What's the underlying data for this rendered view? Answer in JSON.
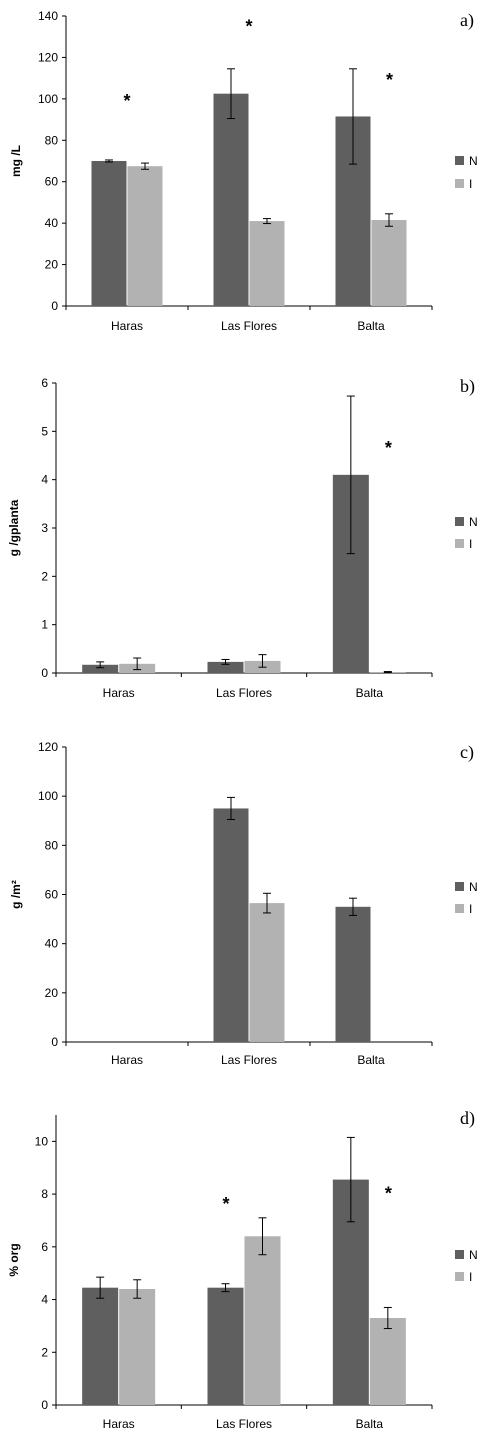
{
  "colors": {
    "N": "#5f5f5f",
    "I": "#b2b2b2",
    "axis": "#000000",
    "errbar": "#000000"
  },
  "chart_data": [
    {
      "type": "bar",
      "panel_label": "a)",
      "ylabel": "mg /L",
      "categories": [
        "Haras",
        "Las Flores",
        "Balta"
      ],
      "series": [
        {
          "name": "N",
          "values": [
            70,
            102.5,
            91.5
          ],
          "errors": [
            0.5,
            12,
            23
          ]
        },
        {
          "name": "I",
          "values": [
            67.5,
            41,
            41.5
          ],
          "errors": [
            1.5,
            1.2,
            3
          ]
        }
      ],
      "ylim": [
        0,
        140
      ],
      "yticks": [
        0,
        20,
        40,
        60,
        80,
        100,
        120,
        140
      ],
      "annotations": [
        {
          "text": "*",
          "category": "Haras",
          "y": 100
        },
        {
          "text": "*",
          "category": "Las Flores",
          "y": 136
        },
        {
          "text": "*",
          "category": "Balta",
          "y": 110
        }
      ],
      "grid": false,
      "legend": "right"
    },
    {
      "type": "bar",
      "panel_label": "b)",
      "ylabel": "g /gplanta",
      "categories": [
        "Haras",
        "Las Flores",
        "Balta"
      ],
      "series": [
        {
          "name": "N",
          "values": [
            0.17,
            0.23,
            4.1
          ],
          "errors": [
            0.06,
            0.05,
            1.63
          ]
        },
        {
          "name": "I",
          "values": [
            0.19,
            0.25,
            0.02
          ],
          "errors": [
            0.12,
            0.13,
            0.01
          ]
        }
      ],
      "ylim": [
        0,
        6
      ],
      "yticks": [
        0,
        1,
        2,
        3,
        4,
        5,
        6
      ],
      "annotations": [
        {
          "text": "*",
          "category": "Balta",
          "y": 4.7
        }
      ],
      "grid": false,
      "legend": "right"
    },
    {
      "type": "bar",
      "panel_label": "c)",
      "ylabel": "g /m²",
      "categories": [
        "Haras",
        "Las Flores",
        "Balta"
      ],
      "series": [
        {
          "name": "N",
          "values": [
            0,
            95,
            55
          ],
          "errors": [
            0,
            4.5,
            3.5
          ]
        },
        {
          "name": "I",
          "values": [
            0,
            56.5,
            0
          ],
          "errors": [
            0,
            4,
            0
          ]
        }
      ],
      "ylim": [
        0,
        120
      ],
      "yticks": [
        0,
        20,
        40,
        60,
        80,
        100,
        120
      ],
      "annotations": [],
      "grid": false,
      "legend": "right"
    },
    {
      "type": "bar",
      "panel_label": "d)",
      "ylabel": "% org",
      "categories": [
        "Haras",
        "Las Flores",
        "Balta"
      ],
      "series": [
        {
          "name": "N",
          "values": [
            4.45,
            4.45,
            8.55
          ],
          "errors": [
            0.4,
            0.15,
            1.6
          ]
        },
        {
          "name": "I",
          "values": [
            4.4,
            6.4,
            3.3
          ],
          "errors": [
            0.35,
            0.7,
            0.4
          ]
        }
      ],
      "ylim": [
        0,
        11
      ],
      "yticks": [
        0,
        2,
        4,
        6,
        8,
        10
      ],
      "annotations": [
        {
          "text": "*",
          "category": "Las Flores",
          "y": 7.7
        },
        {
          "text": "*",
          "category": "Balta",
          "y": 8.1
        }
      ],
      "grid": false,
      "legend": "right"
    }
  ]
}
